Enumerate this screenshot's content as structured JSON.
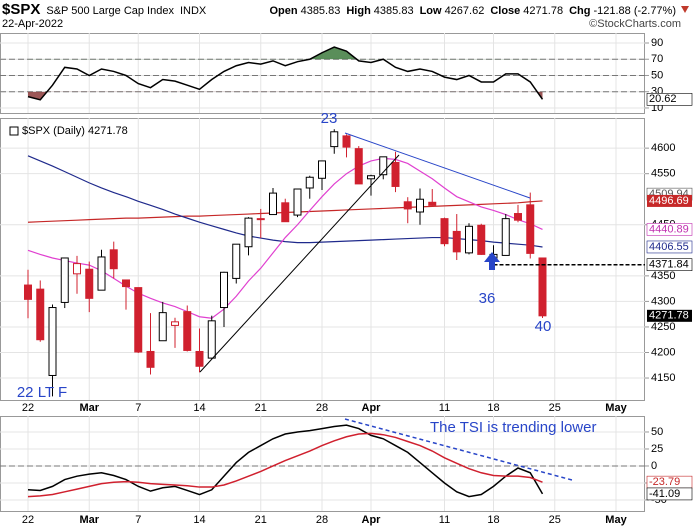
{
  "header": {
    "symbol": "$SPX",
    "name": "S&P 500 Large Cap Index",
    "exchange": "INDX",
    "date": "22-Apr-2022",
    "quote": [
      {
        "label": "Open",
        "value": 4385.83
      },
      {
        "label": "High",
        "value": 4385.83
      },
      {
        "label": "Low",
        "value": 4267.62
      },
      {
        "label": "Close",
        "value": 4271.78
      },
      {
        "label": "Chg",
        "value": "-121.88 (-2.77%)"
      }
    ],
    "credit": "©StockCharts.com"
  },
  "chart_data": [
    {
      "type": "line",
      "ylim": [
        3.8,
        102.3
      ],
      "yticks": [
        10,
        30,
        50,
        70,
        90
      ],
      "reference_lines": [
        70,
        50,
        30
      ],
      "fill_above": {
        "level": 70,
        "color": "#3d7a3d"
      },
      "fill_below": {
        "level": 30,
        "color": "#8b3a3a"
      },
      "series": [
        {
          "color": "#000000",
          "values": [
            24,
            20,
            38,
            60,
            58,
            50,
            58,
            55,
            50,
            40,
            35,
            45,
            43,
            38,
            33,
            45,
            55,
            62,
            66,
            64,
            68,
            62,
            67,
            70,
            78,
            85,
            80,
            68,
            66,
            70,
            60,
            55,
            58,
            55,
            48,
            45,
            50,
            42,
            42,
            52,
            52,
            42,
            20.62,
            null,
            null,
            null,
            null,
            null,
            null
          ]
        }
      ],
      "axis_tags": [
        {
          "value": 20.62,
          "color": "#000000",
          "boxed": false
        }
      ]
    },
    {
      "type": "candlestick",
      "legend": "$SPX (Daily) 4271.78",
      "ylim": [
        4107,
        4659
      ],
      "yticks": [
        4150,
        4200,
        4250,
        4300,
        4350,
        4450,
        4550,
        4600
      ],
      "grid": true,
      "categories": [
        "22",
        null,
        null,
        null,
        null,
        "Mar",
        null,
        null,
        null,
        "7",
        null,
        null,
        null,
        null,
        "14",
        null,
        null,
        null,
        null,
        "21",
        null,
        null,
        null,
        null,
        "28",
        null,
        null,
        null,
        "Apr",
        null,
        null,
        null,
        null,
        null,
        "11",
        null,
        null,
        null,
        "18",
        null,
        null,
        null,
        null,
        "25",
        null,
        null,
        null,
        null,
        "May"
      ],
      "open": [
        4332,
        4324,
        4155,
        4298,
        4354,
        4363,
        4322,
        4401,
        4342,
        4327,
        4202,
        4223,
        4253,
        4280,
        4202,
        4189,
        4288,
        4345,
        4407,
        4462,
        4470,
        4493,
        4469,
        4522,
        4541,
        4603,
        4624,
        4599,
        4540,
        4548,
        4572,
        4495,
        4475,
        4494,
        4462,
        4437,
        4395,
        4449,
        4385,
        4390,
        4472,
        4489,
        4385,
        null,
        null,
        null,
        null,
        null,
        null
      ],
      "high": [
        4362,
        4341,
        4294,
        4385,
        4389,
        4378,
        4401,
        4417,
        4342,
        4327,
        4277,
        4299,
        4268,
        4292,
        4247,
        4272,
        4358,
        4412,
        4465,
        4481,
        4522,
        4501,
        4520,
        4546,
        4575,
        4637,
        4627,
        4604,
        4548,
        4583,
        4593,
        4504,
        4521,
        4520,
        4464,
        4471,
        4453,
        4452,
        4410,
        4471,
        4489,
        4513,
        4385.83,
        null,
        null,
        null,
        null,
        null,
        null
      ],
      "low": [
        4267,
        4221,
        4114,
        4287,
        4315,
        4279,
        4322,
        4345,
        4284,
        4199,
        4157,
        4223,
        4209,
        4202,
        4161,
        4187,
        4250,
        4335,
        4390,
        4424,
        4470,
        4456,
        4465,
        4501,
        4518,
        4589,
        4582,
        4530,
        4507,
        4539,
        4514,
        4453,
        4450,
        4487,
        4408,
        4381,
        4392,
        4391,
        4370,
        4390,
        4455,
        4384,
        4267.62,
        null,
        null,
        null,
        null,
        null,
        null
      ],
      "close": [
        4304,
        4225,
        4288,
        4385,
        4374,
        4306,
        4387,
        4364,
        4329,
        4201,
        4171,
        4278,
        4260,
        4204,
        4173,
        4262,
        4357,
        4412,
        4463,
        4461,
        4512,
        4456,
        4520,
        4543,
        4575,
        4632,
        4602,
        4530,
        4546,
        4583,
        4525,
        4481,
        4500,
        4488,
        4413,
        4397,
        4447,
        4392,
        4392,
        4462,
        4459,
        4394,
        4271.78,
        null,
        null,
        null,
        null,
        null,
        null
      ],
      "up_color": "#000000",
      "down_color": "#d0202e",
      "overlays": [
        {
          "color": "#c62828",
          "values": [
            4455,
            4456,
            4457,
            4458,
            4459,
            4460,
            4461,
            4462,
            4463,
            4463,
            4464,
            4465,
            4466,
            4467,
            4467,
            4468,
            4469,
            4470,
            4471,
            4472,
            4473,
            4474,
            4475,
            4476,
            4477,
            4478,
            4479,
            4480,
            4481,
            4482,
            4483,
            4484,
            4485,
            4486,
            4487,
            4488,
            4489,
            4490,
            4491,
            4492,
            4493,
            4495,
            4496.69,
            null,
            null,
            null,
            null,
            null,
            null
          ]
        },
        {
          "color": "#1f2a8c",
          "values": [
            4585,
            4575,
            4565,
            4554,
            4543,
            4532,
            4522,
            4513,
            4505,
            4496,
            4488,
            4480,
            4471,
            4463,
            4455,
            4448,
            4441,
            4434,
            4428,
            4424,
            4420,
            4417,
            4415,
            4415,
            4416,
            4417,
            4418,
            4419,
            4420,
            4421,
            4422,
            4423,
            4424,
            4425,
            4425,
            4423,
            4421,
            4419,
            4416,
            4414,
            4412,
            4410,
            4406.55,
            null,
            null,
            null,
            null,
            null,
            null
          ]
        },
        {
          "color": "#e040d0",
          "values": [
            4400,
            4392,
            4385,
            4380,
            4375,
            4371,
            4360,
            4345,
            4330,
            4316,
            4306,
            4297,
            4290,
            4280,
            4270,
            4267,
            4285,
            4310,
            4340,
            4365,
            4395,
            4425,
            4450,
            4478,
            4505,
            4530,
            4550,
            4565,
            4575,
            4580,
            4578,
            4570,
            4555,
            4540,
            4522,
            4505,
            4495,
            4485,
            4478,
            4470,
            4460,
            4452,
            4440.89,
            null,
            null,
            null,
            null,
            null,
            null
          ]
        }
      ],
      "axis_tags": [
        {
          "value": 4509.94,
          "color": "#555555",
          "boxed": false
        },
        {
          "value": 4496.69,
          "color": "#c62828",
          "boxed": true
        },
        {
          "value": 4440.89,
          "color": "#c030b0",
          "boxed": false
        },
        {
          "value": 4406.55,
          "color": "#1f2a8c",
          "boxed": false
        },
        {
          "value": 4371.84,
          "color": "#000000",
          "boxed": false,
          "dashed": true
        },
        {
          "value": 4271.78,
          "color": "#000000",
          "boxed": true
        }
      ],
      "annotations": [
        {
          "text": "23",
          "color": "#2845c8"
        },
        {
          "text": "36",
          "color": "#2845c8"
        },
        {
          "text": "40",
          "color": "#2845c8"
        },
        {
          "text": "22 LT F",
          "color": "#2845c8"
        }
      ]
    },
    {
      "type": "line",
      "ylim": [
        -66.2,
        73.5
      ],
      "yticks": [
        50,
        25,
        0,
        -25,
        -50
      ],
      "reference_lines": [
        0
      ],
      "series": [
        {
          "color": "#000000",
          "values": [
            -35,
            -36,
            -30,
            -20,
            -15,
            -12,
            -10,
            -14,
            -20,
            -30,
            -37,
            -32,
            -30,
            -36,
            -42,
            -35,
            -15,
            5,
            20,
            30,
            40,
            47,
            50,
            52,
            55,
            58,
            60,
            55,
            45,
            40,
            30,
            20,
            5,
            -10,
            -25,
            -38,
            -45,
            -42,
            -30,
            -15,
            -3,
            -10,
            -41.09,
            null,
            null,
            null,
            null,
            null,
            null
          ]
        },
        {
          "color": "#d0202e",
          "values": [
            -45,
            -44,
            -42,
            -38,
            -34,
            -30,
            -26,
            -24,
            -23,
            -24,
            -26,
            -27,
            -28,
            -29,
            -31,
            -31,
            -28,
            -22,
            -15,
            -8,
            0,
            8,
            15,
            22,
            30,
            37,
            43,
            47,
            48,
            46,
            42,
            36,
            30,
            22,
            12,
            4,
            -4,
            -10,
            -14,
            -15,
            -15,
            -17,
            -23.79,
            null,
            null,
            null,
            null,
            null,
            null
          ]
        }
      ],
      "axis_tags": [
        {
          "value": -23.79,
          "color": "#c62828",
          "boxed": false
        },
        {
          "value": -41.09,
          "color": "#000000",
          "boxed": false
        }
      ],
      "annotations": [
        {
          "text": "The TSI is trending lower",
          "color": "#2845c8"
        }
      ]
    }
  ]
}
